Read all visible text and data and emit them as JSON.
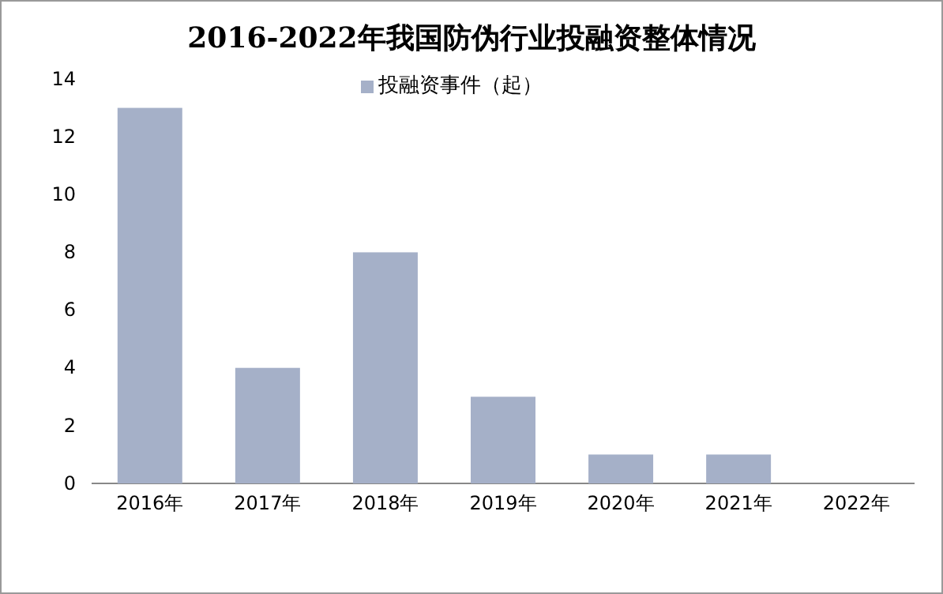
{
  "chart_data": {
    "type": "bar",
    "title": "2016-2022年我国防伪行业投融资整体情况",
    "categories": [
      "2016年",
      "2017年",
      "2018年",
      "2019年",
      "2020年",
      "2021年",
      "2022年"
    ],
    "series": [
      {
        "name": "投融资事件（起）",
        "color": "#a5b0c8",
        "values": [
          13,
          4,
          8,
          3,
          1,
          1,
          0
        ]
      }
    ],
    "ylim": [
      0,
      14
    ],
    "yticks": [
      0,
      2,
      4,
      6,
      8,
      10,
      12,
      14
    ],
    "grid": false,
    "legend": "top"
  }
}
